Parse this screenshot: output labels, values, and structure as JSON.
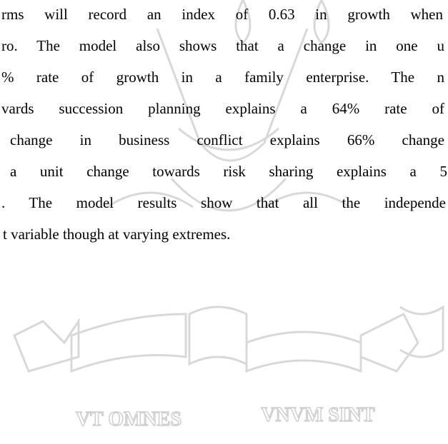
{
  "document": {
    "lines": [
      "rms will record an index of 0.63 in growth when",
      "ro. The model also shows that a change in one u",
      "% rate of growth in a family enterprise. The n",
      "vards succession planning explains a 64% rate of",
      "change in business conflict explains 66% change",
      "a unit change towards risk sharing explains a 5",
      ". The model results show that all the independe",
      "t variable though at varying extremes."
    ],
    "watermark": {
      "motto_left": "VT OMNES",
      "motto_right": "VNVM SINT"
    }
  }
}
